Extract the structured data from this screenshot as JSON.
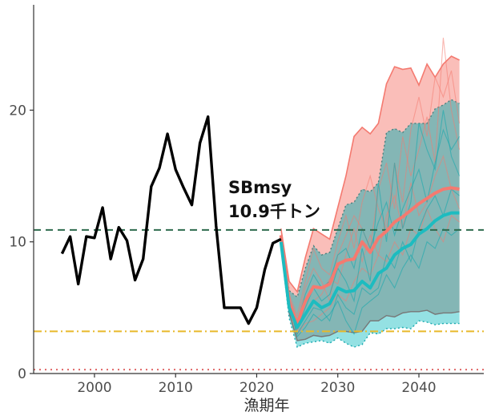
{
  "chart_data": {
    "type": "line",
    "title": "",
    "xlabel": "漁期年",
    "ylabel": "",
    "xlim": [
      1992.5,
      2048
    ],
    "ylim": [
      0,
      28
    ],
    "xticks": [
      2000,
      2010,
      2020,
      2030,
      2040
    ],
    "yticks": [
      0,
      10,
      20
    ],
    "xtick_labels": [
      "2000",
      "2010",
      "2020",
      "2030",
      "2040"
    ],
    "ytick_labels": [
      "0",
      "10",
      "20"
    ],
    "grid": false,
    "legend": "none",
    "annotation": {
      "line1": "SBmsy",
      "line2": "10.9千トン",
      "x": 2016.5,
      "y": 13.7
    },
    "reference_lines": [
      {
        "y": 10.9,
        "style": "dashed",
        "color": "#2e6b4e"
      },
      {
        "y": 3.2,
        "style": "dashdot",
        "color": "#e8b92a"
      },
      {
        "y": 0.3,
        "style": "dotted",
        "color": "#e06666"
      }
    ],
    "colors": {
      "observed": "#000000",
      "scenario_a": "#f47a70",
      "scenario_b": "#1dbcc0",
      "band_a": "#f8a8a2",
      "band_b": "#3cc8cc",
      "overlap": "#6b9e9b"
    },
    "observed": {
      "x": [
        1996,
        1997,
        1998,
        1999,
        2000,
        2001,
        2002,
        2003,
        2004,
        2005,
        2006,
        2007,
        2008,
        2009,
        2010,
        2011,
        2012,
        2013,
        2014,
        2015,
        2016,
        2017,
        2018,
        2019,
        2020,
        2021,
        2022,
        2023
      ],
      "y": [
        9.1,
        10.4,
        6.8,
        10.4,
        10.3,
        12.6,
        8.7,
        11.1,
        10.1,
        7.1,
        8.7,
        14.2,
        15.6,
        18.2,
        15.5,
        14.1,
        12.8,
        17.5,
        19.5,
        11.2,
        5.0,
        5.0,
        5.0,
        3.8,
        5.0,
        7.9,
        9.9,
        10.2
      ]
    },
    "series": [
      {
        "x": [
          2023,
          2024,
          2025,
          2026,
          2027,
          2028,
          2029,
          2030,
          2031,
          2032,
          2033,
          2034,
          2035,
          2036,
          2037,
          2038,
          2039,
          2040,
          2041,
          2042,
          2043,
          2044,
          2045
        ],
        "median": [
          10.5,
          5.5,
          3.8,
          5.5,
          6.6,
          6.5,
          6.8,
          8.3,
          8.6,
          8.7,
          10.0,
          9.2,
          10.3,
          10.8,
          11.5,
          11.9,
          12.4,
          12.9,
          13.3,
          13.7,
          14.0,
          14.1,
          14.0
        ],
        "upper": [
          11.0,
          7.0,
          6.2,
          8.8,
          11.0,
          10.6,
          10.2,
          12.6,
          15.0,
          18.0,
          18.7,
          18.2,
          19.0,
          22.0,
          23.3,
          23.1,
          23.2,
          21.9,
          23.5,
          22.5,
          23.5,
          24.1,
          23.8
        ],
        "lower": [
          10.0,
          4.6,
          2.5,
          2.6,
          2.9,
          2.8,
          2.9,
          3.2,
          3.2,
          3.1,
          3.2,
          4.0,
          4.0,
          4.4,
          4.3,
          4.6,
          4.7,
          4.7,
          4.8,
          4.5,
          4.6,
          4.6,
          4.7
        ]
      },
      {
        "x": [
          2023,
          2024,
          2025,
          2026,
          2027,
          2028,
          2029,
          2030,
          2031,
          2032,
          2033,
          2034,
          2035,
          2036,
          2037,
          2038,
          2039,
          2040,
          2041,
          2042,
          2043,
          2044,
          2045
        ],
        "median": [
          10.0,
          5.0,
          3.5,
          4.5,
          5.5,
          5.0,
          5.3,
          6.5,
          6.2,
          6.3,
          7.0,
          6.5,
          7.6,
          8.0,
          9.0,
          9.5,
          9.8,
          10.6,
          11.0,
          11.6,
          12.0,
          12.2,
          12.2
        ],
        "upper": [
          10.5,
          6.3,
          5.8,
          8.0,
          9.7,
          9.0,
          9.2,
          11.0,
          12.8,
          13.0,
          14.0,
          13.8,
          14.5,
          18.3,
          18.6,
          18.3,
          19.0,
          19.0,
          19.0,
          20.1,
          20.4,
          20.8,
          20.5
        ],
        "lower": [
          9.6,
          4.2,
          2.0,
          2.3,
          2.4,
          2.5,
          2.3,
          2.7,
          2.3,
          2.0,
          2.2,
          3.1,
          3.0,
          3.4,
          3.4,
          3.5,
          3.4,
          4.0,
          3.9,
          3.7,
          3.8,
          3.8,
          3.8
        ]
      }
    ],
    "sample_paths_a": [
      [
        9.8,
        5.2,
        3.9,
        6.5,
        8.0,
        7.0,
        5.5,
        9.0,
        10.5,
        12.0,
        11.0,
        9.5,
        14.0,
        16.0,
        12.5,
        18.0,
        15.0,
        17.0,
        19.5,
        16.0,
        25.5,
        20.0,
        17.0
      ],
      [
        10.1,
        5.6,
        3.2,
        4.5,
        5.5,
        6.0,
        7.2,
        6.8,
        9.0,
        11.0,
        8.5,
        10.5,
        9.0,
        12.0,
        13.5,
        11.0,
        14.5,
        12.0,
        13.0,
        15.0,
        16.5,
        14.0,
        12.5
      ],
      [
        10.4,
        6.0,
        4.4,
        7.0,
        9.5,
        8.0,
        7.5,
        10.0,
        12.0,
        9.5,
        13.0,
        15.0,
        12.5,
        11.0,
        16.0,
        13.0,
        18.5,
        21.0,
        18.0,
        22.5,
        21.0,
        23.0,
        19.0
      ],
      [
        10.0,
        4.8,
        3.0,
        3.8,
        4.0,
        4.5,
        5.0,
        6.0,
        5.5,
        7.0,
        8.0,
        7.5,
        9.0,
        8.5,
        10.0,
        9.0,
        11.0,
        10.5,
        12.5,
        11.0,
        10.0,
        12.0,
        11.5
      ]
    ],
    "sample_paths_b": [
      [
        9.9,
        5.0,
        3.4,
        5.0,
        6.5,
        5.5,
        6.0,
        8.0,
        7.0,
        5.5,
        9.5,
        7.0,
        14.5,
        10.0,
        16.0,
        11.0,
        13.0,
        19.0,
        17.0,
        15.5,
        20.0,
        16.5,
        15.0
      ],
      [
        10.2,
        5.4,
        2.8,
        3.5,
        4.5,
        4.0,
        4.5,
        5.5,
        4.0,
        3.0,
        5.0,
        5.5,
        6.0,
        7.5,
        6.5,
        8.0,
        9.0,
        8.0,
        10.0,
        9.5,
        11.0,
        10.5,
        11.0
      ],
      [
        9.7,
        4.6,
        3.8,
        6.0,
        7.5,
        6.5,
        7.0,
        9.0,
        9.5,
        8.0,
        11.0,
        9.5,
        11.5,
        13.0,
        10.5,
        12.5,
        14.0,
        15.5,
        13.0,
        16.0,
        18.5,
        17.0,
        18.0
      ],
      [
        10.0,
        5.2,
        3.0,
        4.0,
        5.0,
        4.8,
        4.0,
        6.0,
        5.0,
        4.5,
        6.5,
        6.0,
        6.5,
        9.0,
        8.0,
        10.0,
        8.5,
        11.0,
        12.5,
        13.5,
        12.0,
        14.0,
        13.5
      ]
    ]
  }
}
